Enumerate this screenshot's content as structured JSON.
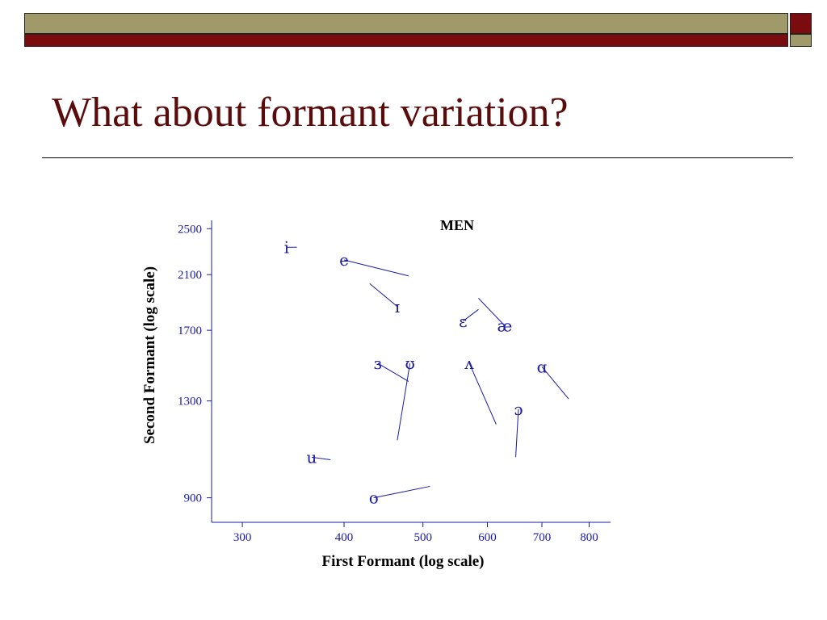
{
  "slide": {
    "title": "What about formant variation?",
    "colors": {
      "olive": "#a09a6a",
      "maroon": "#7a0c10",
      "title": "#5a0b0b",
      "chart_ink": "#1a1aa6"
    }
  },
  "chart_data": {
    "type": "scatter",
    "title": "MEN",
    "xlabel": "First Formant (log scale)",
    "ylabel": "Second Formant (log scale)",
    "x_scale": "log",
    "y_scale": "log",
    "xlim": [
      275,
      850
    ],
    "ylim": [
      820,
      2580
    ],
    "xticks": [
      300,
      400,
      500,
      600,
      700,
      800
    ],
    "yticks": [
      900,
      1300,
      1700,
      2100,
      2500
    ],
    "grid": false,
    "points": [
      {
        "label": "i",
        "x": 340,
        "y": 2330,
        "x2": 350,
        "y2": 2330
      },
      {
        "label": "e",
        "x": 400,
        "y": 2220,
        "x2": 480,
        "y2": 2090
      },
      {
        "label": "ɪ",
        "x": 465,
        "y": 1860,
        "x2": 430,
        "y2": 2030
      },
      {
        "label": "ɛ",
        "x": 560,
        "y": 1760,
        "x2": 585,
        "y2": 1840
      },
      {
        "label": "æ",
        "x": 630,
        "y": 1730,
        "x2": 585,
        "y2": 1920
      },
      {
        "label": "ɜ",
        "x": 440,
        "y": 1500,
        "x2": 480,
        "y2": 1400
      },
      {
        "label": "ʊ",
        "x": 482,
        "y": 1500,
        "x2": 465,
        "y2": 1120
      },
      {
        "label": "ʌ",
        "x": 570,
        "y": 1500,
        "x2": 615,
        "y2": 1190
      },
      {
        "label": "ɑ",
        "x": 700,
        "y": 1480,
        "x2": 755,
        "y2": 1310
      },
      {
        "label": "ɔ",
        "x": 655,
        "y": 1260,
        "x2": 650,
        "y2": 1050
      },
      {
        "label": "u",
        "x": 365,
        "y": 1050,
        "x2": 385,
        "y2": 1040
      },
      {
        "label": "o",
        "x": 435,
        "y": 900,
        "x2": 510,
        "y2": 940
      }
    ]
  }
}
